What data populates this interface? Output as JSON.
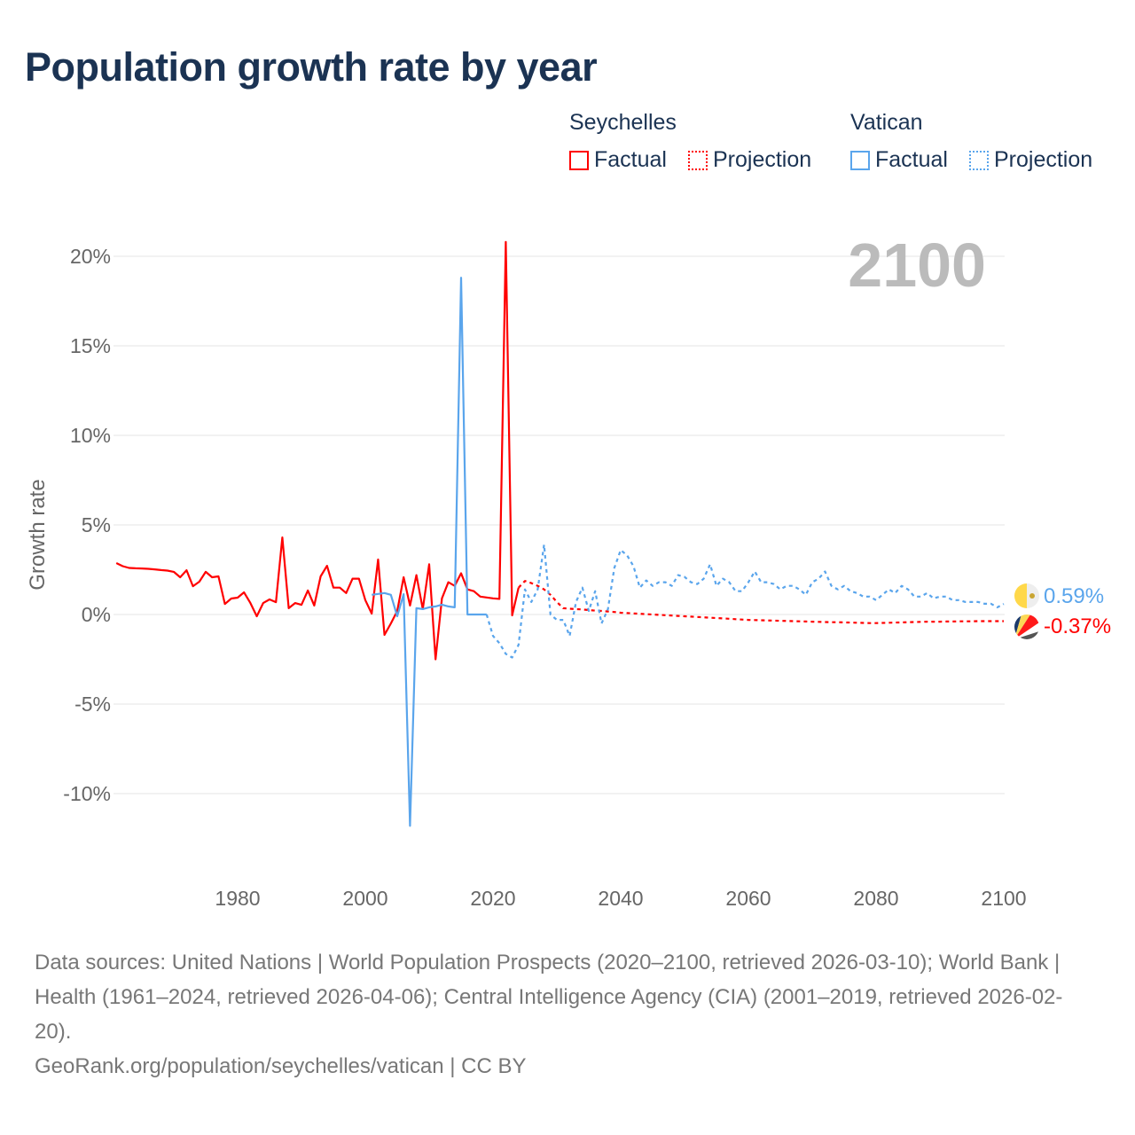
{
  "title": "Population growth rate by year",
  "legend": {
    "groups": [
      {
        "name": "Seychelles",
        "color": "#ff0000",
        "items": [
          "Factual",
          "Projection"
        ]
      },
      {
        "name": "Vatican",
        "color": "#5aa5ec",
        "items": [
          "Factual",
          "Projection"
        ]
      }
    ]
  },
  "year_label": "2100",
  "end_labels": {
    "vatican": "0.59%",
    "seychelles": "-0.37%"
  },
  "footer": {
    "sources": "Data sources: United Nations | World Population Prospects (2020–2100, retrieved 2026-03-10); World Bank | Health (1961–2024, retrieved 2026-04-06); Central Intelligence Agency (CIA) (2001–2019, retrieved 2026-02-20).",
    "credit": "GeoRank.org/population/seychelles/vatican | CC BY"
  },
  "chart_data": {
    "type": "line",
    "ylabel": "Growth rate",
    "xlabel": "",
    "xlim": [
      1961,
      2100
    ],
    "ylim": [
      -12.5,
      22
    ],
    "xticks": [
      1980,
      2000,
      2020,
      2040,
      2060,
      2080,
      2100
    ],
    "yticks": [
      20,
      15,
      10,
      5,
      0,
      -5,
      -10
    ],
    "ytick_labels": [
      "20%",
      "15%",
      "10%",
      "5%",
      "0%",
      "-5%",
      "-10%"
    ],
    "grid": true,
    "legend_position": "top-right",
    "series": [
      {
        "name": "Seychelles Factual",
        "color": "#ff0000",
        "dashed": false,
        "start": 1961,
        "values": [
          2.87,
          2.7,
          2.6,
          2.58,
          2.57,
          2.55,
          2.52,
          2.48,
          2.45,
          2.38,
          2.08,
          2.47,
          1.58,
          1.83,
          2.38,
          2.08,
          2.13,
          0.59,
          0.89,
          0.94,
          1.24,
          0.64,
          -0.1,
          0.64,
          0.84,
          0.69,
          4.3,
          0.35,
          0.64,
          0.54,
          1.34,
          0.5,
          2.13,
          2.72,
          1.5,
          1.5,
          1.2,
          2.0,
          2.0,
          0.8,
          0.05,
          3.07,
          -1.14,
          -0.5,
          0.2,
          2.08,
          0.5,
          2.2,
          0.3,
          2.8,
          -2.5,
          0.9,
          1.8,
          1.6,
          2.3,
          1.4,
          1.3,
          1.0,
          0.95,
          0.9,
          0.87,
          20.8,
          -0.05,
          1.5
        ]
      },
      {
        "name": "Seychelles Projection",
        "color": "#ff0000",
        "dashed": true,
        "start": 2024,
        "values": [
          1.5,
          1.87,
          1.75,
          1.6,
          1.4,
          1.1,
          0.7,
          0.35,
          0.32,
          0.3,
          0.28,
          0.25,
          0.22,
          0.2,
          0.17,
          0.14,
          0.1,
          0.08,
          0.06,
          0.04,
          0.02,
          0,
          -0.02,
          -0.04,
          -0.06,
          -0.08,
          -0.1,
          -0.12,
          -0.14,
          -0.16,
          -0.18,
          -0.2,
          -0.22,
          -0.24,
          -0.26,
          -0.28,
          -0.3,
          -0.31,
          -0.32,
          -0.33,
          -0.34,
          -0.35,
          -0.36,
          -0.37,
          -0.38,
          -0.39,
          -0.4,
          -0.41,
          -0.42,
          -0.43,
          -0.43,
          -0.44,
          -0.45,
          -0.46,
          -0.47,
          -0.48,
          -0.48,
          -0.47,
          -0.46,
          -0.45,
          -0.44,
          -0.43,
          -0.42,
          -0.41,
          -0.4,
          -0.4,
          -0.4,
          -0.39,
          -0.39,
          -0.38,
          -0.38,
          -0.38,
          -0.37,
          -0.37,
          -0.37,
          -0.37,
          -0.37
        ]
      },
      {
        "name": "Vatican Factual",
        "color": "#5aa5ec",
        "dashed": false,
        "start": 2001,
        "values": [
          1.1,
          1.15,
          1.2,
          1.1,
          -0.1,
          1.14,
          -11.8,
          0.35,
          0.3,
          0.4,
          0.45,
          0.55,
          0.45,
          0.4,
          18.8,
          0,
          0,
          0,
          0
        ]
      },
      {
        "name": "Vatican Projection",
        "color": "#5aa5ec",
        "dashed": true,
        "start": 2019,
        "values": [
          0,
          -1.2,
          -1.6,
          -2.2,
          -2.4,
          -1.7,
          1.4,
          0.7,
          1.4,
          3.9,
          0,
          -0.3,
          -0.3,
          -1.2,
          0.7,
          1.5,
          0.2,
          1.3,
          -0.5,
          0.3,
          2.6,
          3.6,
          3.3,
          2.7,
          1.5,
          1.9,
          1.6,
          1.8,
          1.8,
          1.6,
          2.2,
          2.1,
          1.8,
          1.7,
          2.0,
          2.8,
          1.6,
          2.0,
          1.8,
          1.3,
          1.3,
          1.8,
          2.4,
          1.8,
          1.8,
          1.7,
          1.4,
          1.6,
          1.6,
          1.4,
          1.1,
          1.8,
          2.0,
          2.4,
          1.6,
          1.4,
          1.6,
          1.3,
          1.2,
          1.0,
          1.0,
          0.8,
          1.1,
          1.4,
          1.2,
          1.6,
          1.4,
          1.0,
          1.0,
          1.2,
          0.9,
          1.0,
          1.0,
          0.8,
          0.8,
          0.7,
          0.7,
          0.7,
          0.6,
          0.6,
          0.4,
          0.59
        ]
      }
    ]
  }
}
